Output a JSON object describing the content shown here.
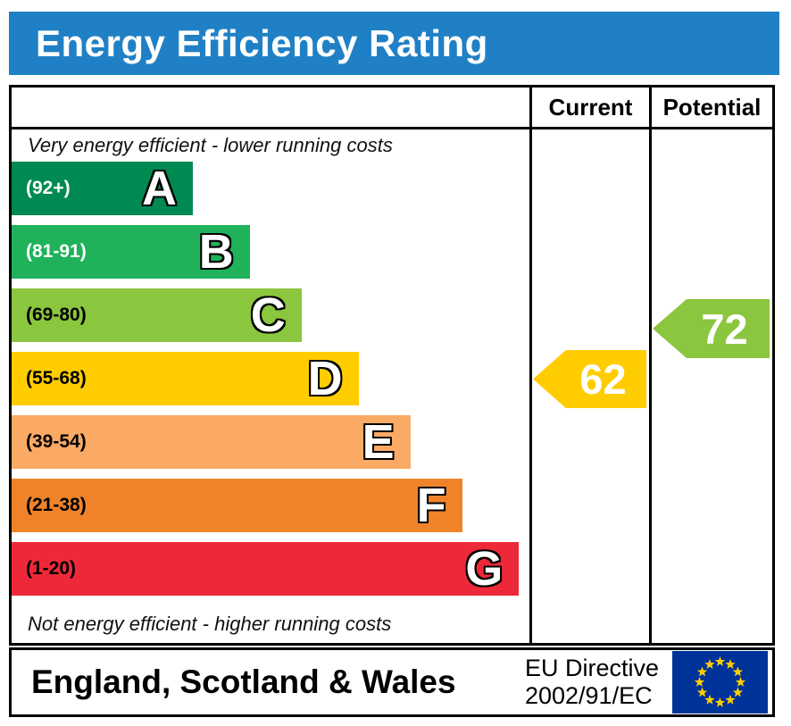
{
  "title": "Energy Efficiency Rating",
  "table": {
    "current_header": "Current",
    "potential_header": "Potential",
    "top_note": "Very energy efficient - lower running costs",
    "bottom_note": "Not energy efficient - higher running costs"
  },
  "bands": [
    {
      "letter": "A",
      "range": "(92+)",
      "color": "#008a51",
      "label_color": "#ffffff",
      "width_pct": 35
    },
    {
      "letter": "B",
      "range": "(81-91)",
      "color": "#1fb25a",
      "label_color": "#ffffff",
      "width_pct": 46
    },
    {
      "letter": "C",
      "range": "(69-80)",
      "color": "#8bc63f",
      "label_color": "#000000",
      "width_pct": 56
    },
    {
      "letter": "D",
      "range": "(55-68)",
      "color": "#ffcc00",
      "label_color": "#000000",
      "width_pct": 67
    },
    {
      "letter": "E",
      "range": "(39-54)",
      "color": "#fbaa65",
      "label_color": "#000000",
      "width_pct": 77
    },
    {
      "letter": "F",
      "range": "(21-38)",
      "color": "#f0832a",
      "label_color": "#000000",
      "width_pct": 87
    },
    {
      "letter": "G",
      "range": "(1-20)",
      "color": "#ed2939",
      "label_color": "#000000",
      "width_pct": 98
    }
  ],
  "current": {
    "value": "62",
    "color": "#ffcc00",
    "band": "D"
  },
  "potential": {
    "value": "72",
    "color": "#8bc63f",
    "band": "C"
  },
  "footer": {
    "region": "England, Scotland & Wales",
    "directive_line1": "EU Directive",
    "directive_line2": "2002/91/EC"
  },
  "colors": {
    "header_blue": "#2080c5",
    "eu_flag_blue": "#003399",
    "eu_star_yellow": "#ffcc00"
  },
  "chart_data": {
    "type": "bar",
    "title": "Energy Efficiency Rating",
    "categories": [
      "A",
      "B",
      "C",
      "D",
      "E",
      "F",
      "G"
    ],
    "band_ranges": [
      "92+",
      "81-91",
      "69-80",
      "55-68",
      "39-54",
      "21-38",
      "1-20"
    ],
    "band_colors": [
      "#008a51",
      "#1fb25a",
      "#8bc63f",
      "#ffcc00",
      "#fbaa65",
      "#f0832a",
      "#ed2939"
    ],
    "bar_widths_pct": [
      35,
      46,
      56,
      67,
      77,
      87,
      98
    ],
    "xlim": [
      1,
      100
    ],
    "markers": [
      {
        "name": "Current",
        "value": 62,
        "band": "D",
        "color": "#ffcc00"
      },
      {
        "name": "Potential",
        "value": 72,
        "band": "C",
        "color": "#8bc63f"
      }
    ],
    "notes": [
      "Very energy efficient - lower running costs",
      "Not energy efficient - higher running costs"
    ],
    "footer": "England, Scotland & Wales",
    "directive": "EU Directive 2002/91/EC"
  }
}
